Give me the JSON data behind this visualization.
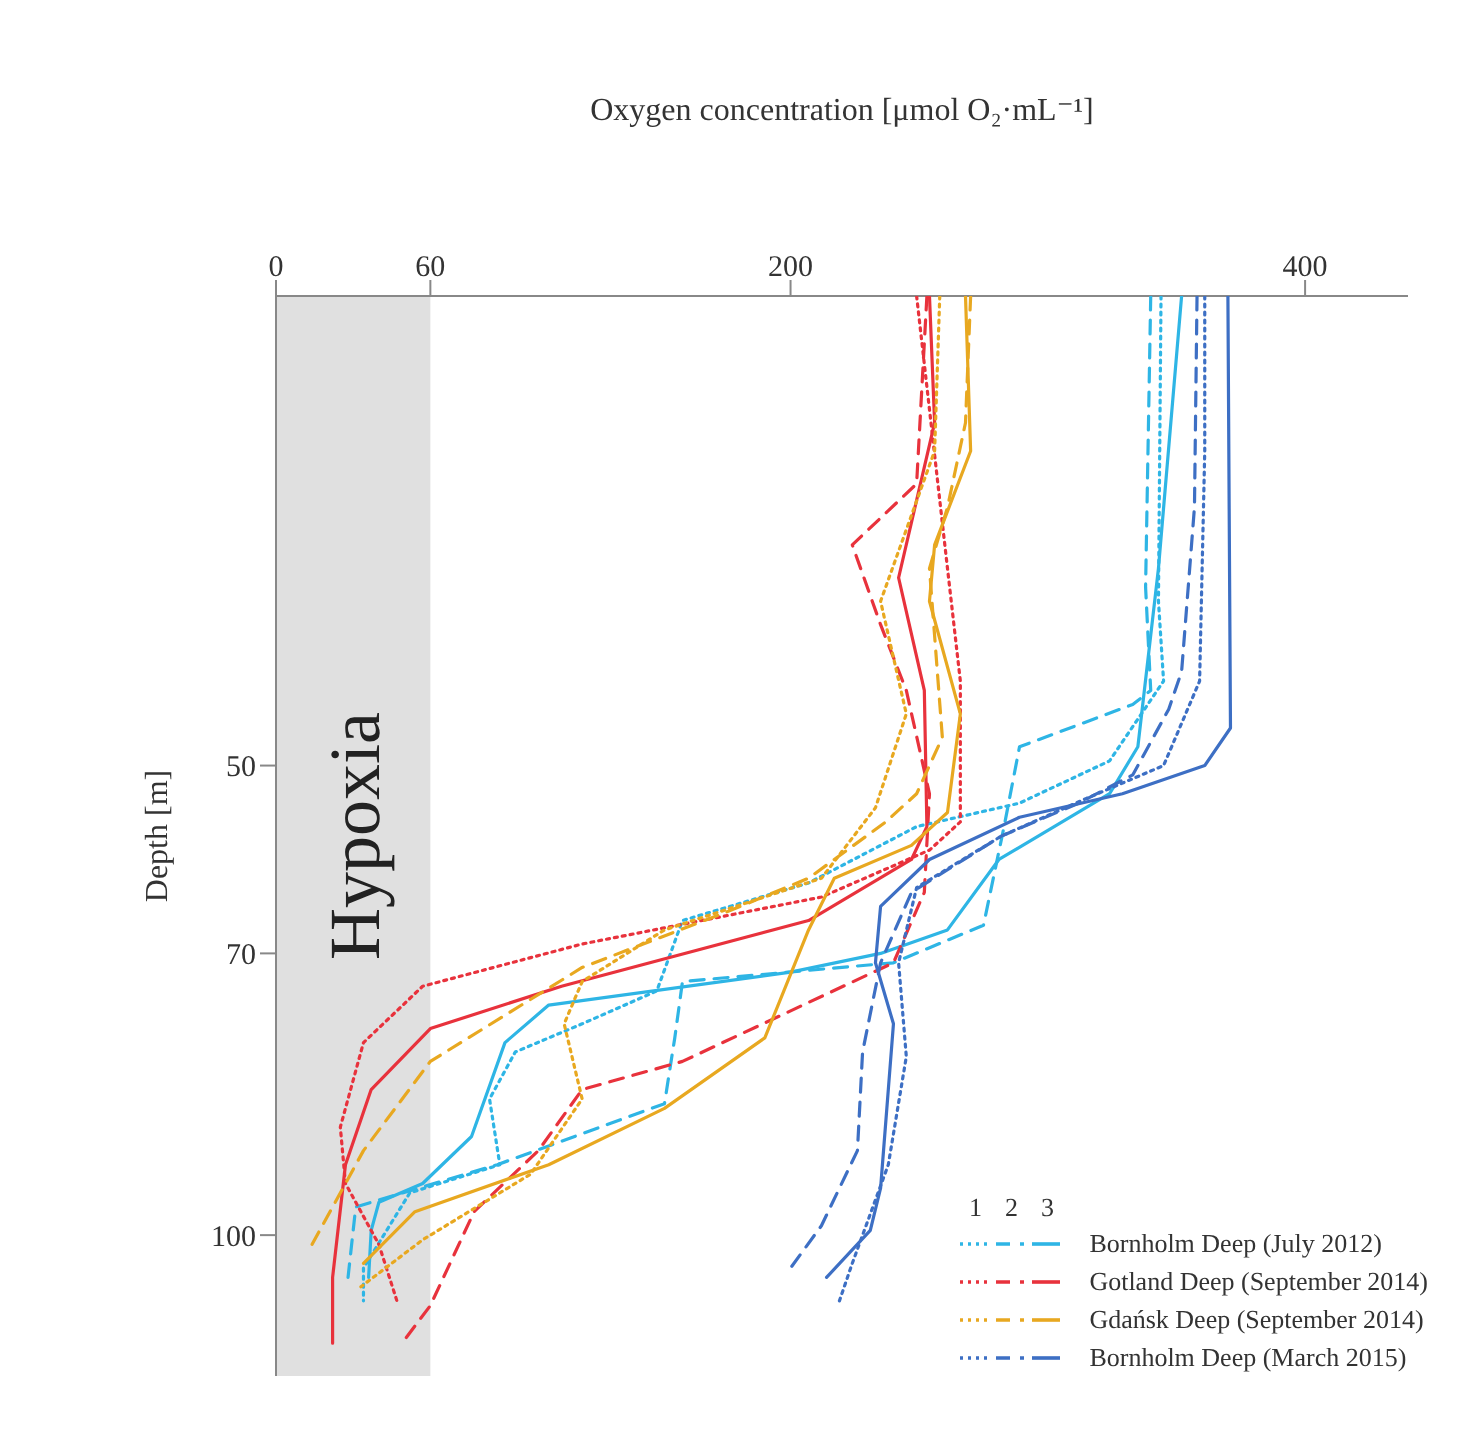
{
  "chart_data": {
    "type": "line",
    "xlabel": "Oxygen concentration  [μmol O₂·mL⁻¹]",
    "ylabel": "Depth [m]",
    "xlim": [
      0,
      440
    ],
    "xticks": [
      0,
      60,
      200,
      400
    ],
    "ylim": [
      115,
      0
    ],
    "yticks": [
      50,
      70,
      100
    ],
    "grid": false,
    "marker": "none",
    "legend": "bottom right",
    "legend_title": "1 2 3",
    "bands": [
      {
        "axis": "x",
        "from": 0,
        "to": 60,
        "label": "Hypoxia",
        "color": "#e0e0e0"
      }
    ],
    "series": [
      {
        "color": "#2eb5e5",
        "line_style": "dotted",
        "x": [
          344,
          343,
          345,
          324,
          289,
          249,
          207,
          158,
          148,
          119,
          93,
          83,
          87,
          52,
          34,
          34
        ],
        "values": [
          0,
          32.5,
          41,
          49.5,
          54,
          56.5,
          62.5,
          66.5,
          74,
          77.5,
          80.5,
          85.5,
          92.5,
          95.5,
          103.5,
          107
        ]
      },
      {
        "color": "#2eb5e5",
        "line_style": "dashed",
        "x": [
          340,
          338,
          340,
          333,
          289,
          283,
          275,
          240,
          158,
          155,
          151,
          86,
          31,
          28
        ],
        "values": [
          0,
          31,
          42,
          43.5,
          48,
          56.5,
          67,
          71,
          73,
          79,
          86,
          92.5,
          97,
          104.5
        ]
      },
      {
        "name": "Bornholm Deep (July 2012)",
        "color": "#2eb5e5",
        "line_style": "solid",
        "x": [
          352,
          343,
          335,
          324,
          281,
          261,
          235,
          200,
          106,
          89,
          76,
          57,
          40,
          37,
          36
        ],
        "values": [
          0,
          29,
          48,
          53,
          60,
          67.5,
          70,
          72,
          75.5,
          79.5,
          89.5,
          94.5,
          96.5,
          99.5,
          104.5
        ]
      },
      {
        "color": "#e8323c",
        "line_style": "dotted",
        "x": [
          249,
          261,
          266,
          266,
          254,
          212,
          119,
          57,
          34,
          25,
          27,
          40,
          47
        ],
        "values": [
          0,
          29,
          41,
          56,
          59,
          64,
          69,
          73.5,
          79.5,
          88.5,
          94.5,
          101,
          107
        ]
      },
      {
        "color": "#e8323c",
        "line_style": "dashed",
        "x": [
          253,
          249,
          224,
          235,
          245,
          254,
          252,
          240,
          158,
          119,
          102,
          77,
          60,
          49
        ],
        "values": [
          0,
          20,
          26.5,
          35,
          42,
          53,
          63.5,
          71,
          81.5,
          84.5,
          91,
          97.5,
          107.5,
          111.5
        ]
      },
      {
        "name": "Gotland Deep (September 2014)",
        "color": "#e8323c",
        "line_style": "solid",
        "x": [
          254,
          256,
          242,
          252,
          253,
          247,
          207,
          111,
          60,
          37,
          27,
          22,
          22
        ],
        "values": [
          0,
          13.5,
          30,
          42,
          56.5,
          60,
          66.5,
          73.5,
          78,
          84.5,
          92.5,
          104.5,
          111.5
        ]
      },
      {
        "color": "#e8a820",
        "line_style": "dotted",
        "x": [
          258,
          256,
          235,
          245,
          233,
          212,
          151,
          119,
          112,
          119,
          99,
          57,
          33
        ],
        "values": [
          0,
          16.5,
          32.5,
          44.5,
          54.5,
          62,
          67.5,
          73,
          77.5,
          85.5,
          93.5,
          100.5,
          105.5
        ]
      },
      {
        "color": "#e8a820",
        "line_style": "dashed",
        "x": [
          270,
          268,
          261,
          254,
          259,
          249,
          237,
          207,
          176,
          119,
          60,
          34,
          13
        ],
        "values": [
          0,
          13.5,
          22.5,
          29,
          47,
          53,
          56,
          62,
          65.5,
          71.5,
          81.5,
          91,
          101.5
        ]
      },
      {
        "name": "Gdańsk Deep (September 2014)",
        "color": "#e8a820",
        "line_style": "solid",
        "x": [
          268,
          270,
          256,
          254,
          266,
          261,
          247,
          217,
          207,
          190,
          151,
          106,
          54,
          34
        ],
        "values": [
          0,
          16.5,
          26.5,
          32.5,
          44.5,
          55,
          58.5,
          62,
          67.5,
          79,
          86.5,
          92.5,
          97.5,
          103
        ]
      },
      {
        "color": "#3d6fc4",
        "line_style": "dotted",
        "x": [
          361,
          361,
          359,
          345,
          315,
          282,
          249,
          242,
          245,
          238,
          224,
          219
        ],
        "values": [
          0,
          16.5,
          41,
          50,
          53.5,
          57.5,
          63,
          71,
          81,
          92.5,
          103,
          107
        ]
      },
      {
        "color": "#3d6fc4",
        "line_style": "dashed",
        "x": [
          358,
          357,
          352,
          347,
          333,
          312,
          282,
          247,
          235,
          228,
          226,
          212,
          200
        ],
        "values": [
          0,
          22.5,
          40,
          44,
          51,
          54,
          57.5,
          63.5,
          71,
          80.5,
          91,
          99,
          103.5
        ]
      },
      {
        "name": "Bornholm Deep (March 2015)",
        "color": "#3d6fc4",
        "line_style": "solid",
        "x": [
          370,
          371,
          361,
          329,
          289,
          254,
          235,
          233,
          240,
          238,
          235,
          231,
          214
        ],
        "values": [
          0,
          46,
          50,
          53,
          55.5,
          60,
          65,
          71,
          77.5,
          84.5,
          95,
          99.5,
          104.5
        ]
      }
    ]
  }
}
